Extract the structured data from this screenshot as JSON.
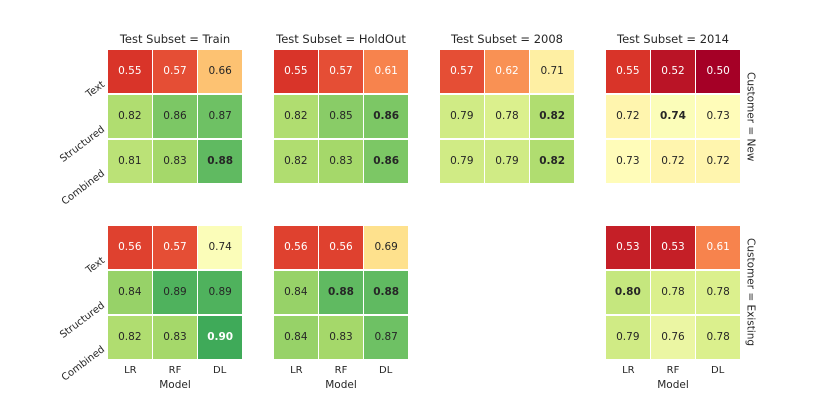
{
  "chart_data": {
    "type": "heatmap",
    "description": "Faceted 3x3 annotated heatmaps of model scores",
    "facet": {
      "col_variable": "Test Subset",
      "row_variable": "Customer",
      "cols": [
        "Train",
        "HoldOut",
        "2008",
        "2014"
      ],
      "rows": [
        "New",
        "Existing"
      ],
      "col_titles": [
        "Test Subset = Train",
        "Test Subset = HoldOut",
        "Test Subset = 2008",
        "Test Subset = 2014"
      ],
      "row_titles": [
        "Customer = New",
        "Customer = Existing"
      ]
    },
    "x_categories": [
      "LR",
      "RF",
      "DL"
    ],
    "y_categories": [
      "Text",
      "Structured",
      "Combined"
    ],
    "xlabel": "Model",
    "colormap": {
      "name": "RdYlGn",
      "vmin": 0.5,
      "vmax": 0.97,
      "stops": [
        "#a50026",
        "#d73027",
        "#f46d43",
        "#fdae61",
        "#fee08b",
        "#ffffbf",
        "#d9ef8b",
        "#a6d96a",
        "#66bd63",
        "#1a9850",
        "#006837"
      ]
    },
    "annotation_style": {
      "white_if_value_at_most": 0.625,
      "white_if_value_at_least": 0.895,
      "dark_text": "#262626",
      "white_text": "#ffffff",
      "bold_rule": "max-value-per-panel"
    },
    "panels": [
      {
        "customer": "New",
        "test_subset": "Train",
        "row": 0,
        "col": 0,
        "values": [
          [
            "0.55",
            "0.57",
            "0.66"
          ],
          [
            "0.82",
            "0.86",
            "0.87"
          ],
          [
            "0.81",
            "0.83",
            "0.88"
          ]
        ]
      },
      {
        "customer": "New",
        "test_subset": "HoldOut",
        "row": 0,
        "col": 1,
        "values": [
          [
            "0.55",
            "0.57",
            "0.61"
          ],
          [
            "0.82",
            "0.85",
            "0.86"
          ],
          [
            "0.82",
            "0.83",
            "0.86"
          ]
        ]
      },
      {
        "customer": "New",
        "test_subset": "2008",
        "row": 0,
        "col": 2,
        "values": [
          [
            "0.57",
            "0.62",
            "0.71"
          ],
          [
            "0.79",
            "0.78",
            "0.82"
          ],
          [
            "0.79",
            "0.79",
            "0.82"
          ]
        ]
      },
      {
        "customer": "New",
        "test_subset": "2014",
        "row": 0,
        "col": 3,
        "values": [
          [
            "0.55",
            "0.52",
            "0.50"
          ],
          [
            "0.72",
            "0.74",
            "0.73"
          ],
          [
            "0.73",
            "0.72",
            "0.72"
          ]
        ]
      },
      {
        "customer": "Existing",
        "test_subset": "Train",
        "row": 1,
        "col": 0,
        "values": [
          [
            "0.56",
            "0.57",
            "0.74"
          ],
          [
            "0.84",
            "0.89",
            "0.89"
          ],
          [
            "0.82",
            "0.83",
            "0.90"
          ]
        ]
      },
      {
        "customer": "Existing",
        "test_subset": "HoldOut",
        "row": 1,
        "col": 1,
        "values": [
          [
            "0.56",
            "0.56",
            "0.69"
          ],
          [
            "0.84",
            "0.88",
            "0.88"
          ],
          [
            "0.84",
            "0.83",
            "0.87"
          ]
        ]
      },
      {
        "customer": "Existing",
        "test_subset": "2014",
        "row": 1,
        "col": 3,
        "values": [
          [
            "0.53",
            "0.53",
            "0.61"
          ],
          [
            "0.80",
            "0.78",
            "0.78"
          ],
          [
            "0.79",
            "0.76",
            "0.78"
          ]
        ]
      }
    ]
  }
}
